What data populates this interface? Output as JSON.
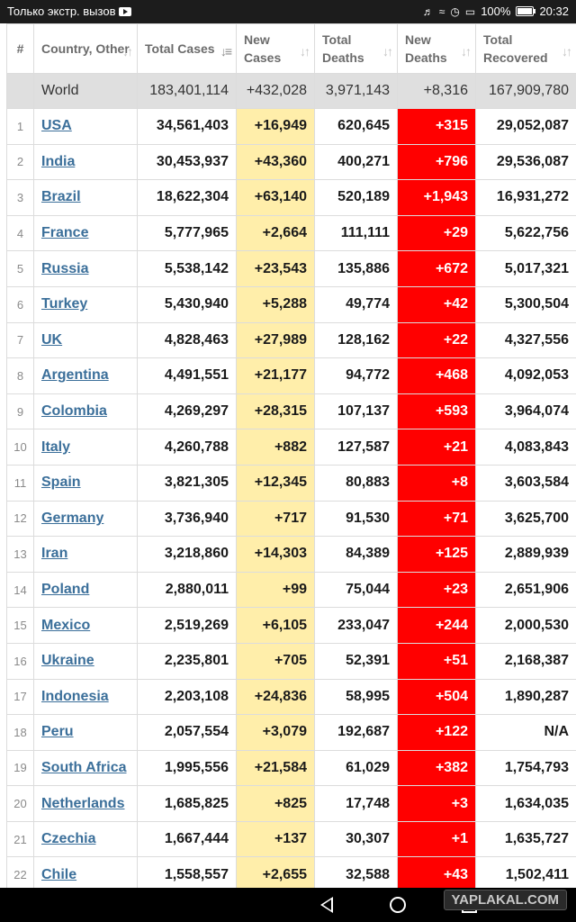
{
  "status_bar": {
    "left_text": "Только экстр. вызов",
    "battery": "100%",
    "time": "20:32"
  },
  "table": {
    "headers": {
      "num": "#",
      "country": "Country, Other",
      "total_cases": "Total Cases",
      "new_cases": "New Cases",
      "total_deaths": "Total Deaths",
      "new_deaths": "New Deaths",
      "total_recovered": "Total Recovered"
    },
    "world": {
      "country": "World",
      "total_cases": "183,401,114",
      "new_cases": "+432,028",
      "total_deaths": "3,971,143",
      "new_deaths": "+8,316",
      "total_recovered": "167,909,780"
    },
    "rows": [
      {
        "num": "1",
        "country": "USA",
        "total_cases": "34,561,403",
        "new_cases": "+16,949",
        "total_deaths": "620,645",
        "new_deaths": "+315",
        "total_recovered": "29,052,087"
      },
      {
        "num": "2",
        "country": "India",
        "total_cases": "30,453,937",
        "new_cases": "+43,360",
        "total_deaths": "400,271",
        "new_deaths": "+796",
        "total_recovered": "29,536,087"
      },
      {
        "num": "3",
        "country": "Brazil",
        "total_cases": "18,622,304",
        "new_cases": "+63,140",
        "total_deaths": "520,189",
        "new_deaths": "+1,943",
        "total_recovered": "16,931,272"
      },
      {
        "num": "4",
        "country": "France",
        "total_cases": "5,777,965",
        "new_cases": "+2,664",
        "total_deaths": "111,111",
        "new_deaths": "+29",
        "total_recovered": "5,622,756"
      },
      {
        "num": "5",
        "country": "Russia",
        "total_cases": "5,538,142",
        "new_cases": "+23,543",
        "total_deaths": "135,886",
        "new_deaths": "+672",
        "total_recovered": "5,017,321"
      },
      {
        "num": "6",
        "country": "Turkey",
        "total_cases": "5,430,940",
        "new_cases": "+5,288",
        "total_deaths": "49,774",
        "new_deaths": "+42",
        "total_recovered": "5,300,504"
      },
      {
        "num": "7",
        "country": "UK",
        "total_cases": "4,828,463",
        "new_cases": "+27,989",
        "total_deaths": "128,162",
        "new_deaths": "+22",
        "total_recovered": "4,327,556"
      },
      {
        "num": "8",
        "country": "Argentina",
        "total_cases": "4,491,551",
        "new_cases": "+21,177",
        "total_deaths": "94,772",
        "new_deaths": "+468",
        "total_recovered": "4,092,053"
      },
      {
        "num": "9",
        "country": "Colombia",
        "total_cases": "4,269,297",
        "new_cases": "+28,315",
        "total_deaths": "107,137",
        "new_deaths": "+593",
        "total_recovered": "3,964,074"
      },
      {
        "num": "10",
        "country": "Italy",
        "total_cases": "4,260,788",
        "new_cases": "+882",
        "total_deaths": "127,587",
        "new_deaths": "+21",
        "total_recovered": "4,083,843"
      },
      {
        "num": "11",
        "country": "Spain",
        "total_cases": "3,821,305",
        "new_cases": "+12,345",
        "total_deaths": "80,883",
        "new_deaths": "+8",
        "total_recovered": "3,603,584"
      },
      {
        "num": "12",
        "country": "Germany",
        "total_cases": "3,736,940",
        "new_cases": "+717",
        "total_deaths": "91,530",
        "new_deaths": "+71",
        "total_recovered": "3,625,700"
      },
      {
        "num": "13",
        "country": "Iran",
        "total_cases": "3,218,860",
        "new_cases": "+14,303",
        "total_deaths": "84,389",
        "new_deaths": "+125",
        "total_recovered": "2,889,939"
      },
      {
        "num": "14",
        "country": "Poland",
        "total_cases": "2,880,011",
        "new_cases": "+99",
        "total_deaths": "75,044",
        "new_deaths": "+23",
        "total_recovered": "2,651,906"
      },
      {
        "num": "15",
        "country": "Mexico",
        "total_cases": "2,519,269",
        "new_cases": "+6,105",
        "total_deaths": "233,047",
        "new_deaths": "+244",
        "total_recovered": "2,000,530"
      },
      {
        "num": "16",
        "country": "Ukraine",
        "total_cases": "2,235,801",
        "new_cases": "+705",
        "total_deaths": "52,391",
        "new_deaths": "+51",
        "total_recovered": "2,168,387"
      },
      {
        "num": "17",
        "country": "Indonesia",
        "total_cases": "2,203,108",
        "new_cases": "+24,836",
        "total_deaths": "58,995",
        "new_deaths": "+504",
        "total_recovered": "1,890,287"
      },
      {
        "num": "18",
        "country": "Peru",
        "total_cases": "2,057,554",
        "new_cases": "+3,079",
        "total_deaths": "192,687",
        "new_deaths": "+122",
        "total_recovered": "N/A"
      },
      {
        "num": "19",
        "country": "South Africa",
        "total_cases": "1,995,556",
        "new_cases": "+21,584",
        "total_deaths": "61,029",
        "new_deaths": "+382",
        "total_recovered": "1,754,793"
      },
      {
        "num": "20",
        "country": "Netherlands",
        "total_cases": "1,685,825",
        "new_cases": "+825",
        "total_deaths": "17,748",
        "new_deaths": "+3",
        "total_recovered": "1,634,035"
      },
      {
        "num": "21",
        "country": "Czechia",
        "total_cases": "1,667,444",
        "new_cases": "+137",
        "total_deaths": "30,307",
        "new_deaths": "+1",
        "total_recovered": "1,635,727"
      },
      {
        "num": "22",
        "country": "Chile",
        "total_cases": "1,558,557",
        "new_cases": "+2,655",
        "total_deaths": "32,588",
        "new_deaths": "+43",
        "total_recovered": "1,502,411"
      }
    ]
  },
  "colors": {
    "new_cases_bg": "#ffeeaa",
    "new_deaths_bg": "#ff0000",
    "world_row_bg": "#dfdfdf",
    "link": "#3b6f9a"
  },
  "watermark": "YAPLAKAL.COM"
}
